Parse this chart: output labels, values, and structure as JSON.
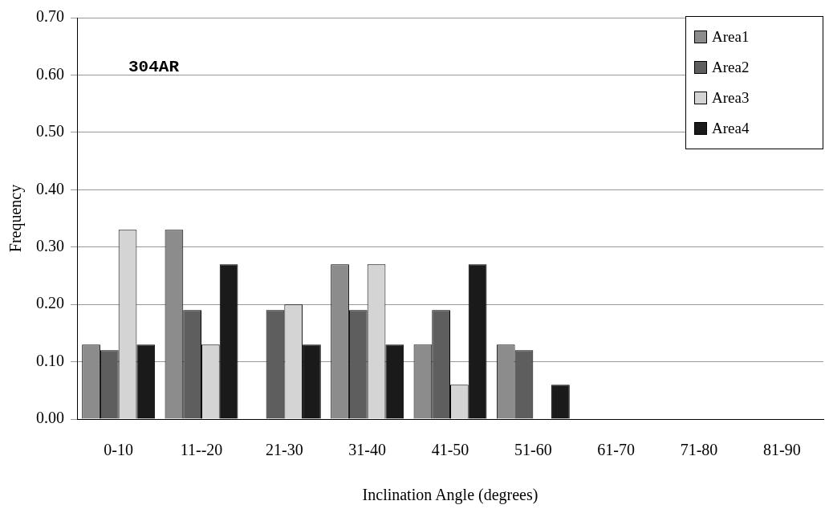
{
  "chart_data": {
    "type": "bar",
    "xlabel": "Inclination Angle (degrees)",
    "ylabel": "Frequency",
    "categories": [
      "0-10",
      "11--20",
      "21-30",
      "31-40",
      "41-50",
      "51-60",
      "61-70",
      "71-80",
      "81-90"
    ],
    "series": [
      {
        "name": "Area1",
        "color": "#8c8c8c",
        "values": [
          0.13,
          0.33,
          0,
          0.27,
          0.13,
          0.13,
          0,
          0,
          0
        ]
      },
      {
        "name": "Area2",
        "color": "#5e5e5e",
        "values": [
          0.12,
          0.19,
          0.19,
          0.19,
          0.19,
          0.12,
          0,
          0,
          0
        ]
      },
      {
        "name": "Area3",
        "color": "#d4d4d4",
        "values": [
          0.33,
          0.13,
          0.2,
          0.27,
          0.06,
          0,
          0,
          0,
          0
        ]
      },
      {
        "name": "Area4",
        "color": "#1a1a1a",
        "values": [
          0.13,
          0.27,
          0.13,
          0.13,
          0.27,
          0.06,
          0,
          0,
          0
        ]
      }
    ],
    "ylim": [
      0,
      0.7
    ],
    "yticks": [
      {
        "value": 0,
        "label": "0.00"
      },
      {
        "value": 0.1,
        "label": "0.10"
      },
      {
        "value": 0.2,
        "label": "0.20"
      },
      {
        "value": 0.3,
        "label": "0.30"
      },
      {
        "value": 0.4,
        "label": "0.40"
      },
      {
        "value": 0.5,
        "label": "0.50"
      },
      {
        "value": 0.6,
        "label": "0.60"
      },
      {
        "value": 0.7,
        "label": "0.70"
      }
    ],
    "grid": "y",
    "legend": "top right",
    "annotations": [
      "304AR"
    ]
  }
}
